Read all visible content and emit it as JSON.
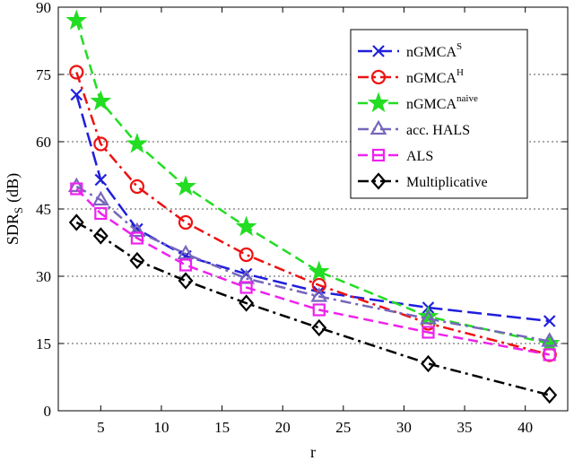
{
  "chart_data": {
    "type": "line",
    "xlabel": "r",
    "ylabel": {
      "main": "SDR",
      "subscript": "S",
      "unit": "(dB)"
    },
    "xlim": [
      1.5,
      43.5
    ],
    "ylim": [
      0,
      90
    ],
    "xticks": [
      5,
      10,
      15,
      20,
      25,
      30,
      35,
      40
    ],
    "yticks": [
      0,
      15,
      30,
      45,
      60,
      75,
      90
    ],
    "grid": "horizontal dotted",
    "legend_position": "top-right",
    "x": [
      3,
      5,
      8,
      12,
      17,
      23,
      32,
      42
    ],
    "series": [
      {
        "name": "nGMCA",
        "sup": "S",
        "color": "#1f1fdd",
        "dash": "16,6",
        "marker": "x",
        "values": [
          70.5,
          51.5,
          40.5,
          34.5,
          30.5,
          26.5,
          23,
          20
        ]
      },
      {
        "name": "nGMCA",
        "sup": "H",
        "color": "#ee1111",
        "dash": "12,5,3,5",
        "marker": "circle",
        "values": [
          75.5,
          59.5,
          50,
          42,
          34.8,
          28,
          19.5,
          12.5
        ]
      },
      {
        "name": "nGMCA",
        "sup": "naive",
        "color": "#22dd22",
        "dash": "11,6",
        "marker": "star",
        "values": [
          87,
          69,
          59.5,
          50,
          41,
          31,
          21,
          15
        ]
      },
      {
        "name": "acc. HALS",
        "sup": "",
        "color": "#7766bb",
        "dash": "12,5,3,5",
        "marker": "triangle",
        "values": [
          50,
          47,
          40,
          35,
          29.5,
          25.5,
          20.5,
          15.5
        ]
      },
      {
        "name": "ALS",
        "sup": "",
        "color": "#ee22ee",
        "dash": "11,6",
        "marker": "square",
        "values": [
          49.5,
          44,
          38.5,
          32.5,
          27.5,
          22.5,
          17.5,
          12.5
        ]
      },
      {
        "name": "Multiplicative",
        "sup": "",
        "color": "#000000",
        "dash": "12,5,3,5",
        "marker": "diamond",
        "values": [
          42,
          39,
          33.5,
          29,
          24,
          18.5,
          10.5,
          3.5
        ]
      }
    ]
  }
}
